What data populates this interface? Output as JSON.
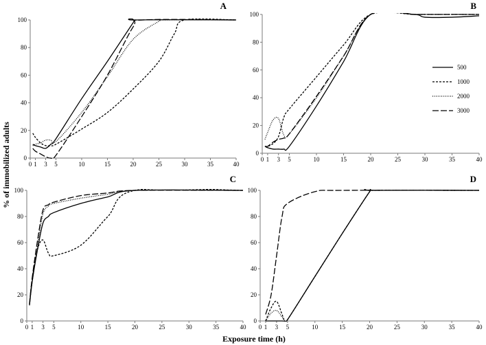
{
  "chart_data": {
    "type": "line",
    "ylabel": "% of immobilized adults",
    "xlabel": "Exposure time (h)",
    "x_ticks": [
      0,
      1,
      3,
      5,
      10,
      15,
      20,
      25,
      30,
      35,
      40
    ],
    "y_ticks": [
      0,
      20,
      40,
      60,
      80,
      100
    ],
    "xlim": [
      0,
      40
    ],
    "ylim": [
      0,
      100
    ],
    "legend": {
      "placement": "panel B, right",
      "entries": [
        {
          "label": "500",
          "style": "solid"
        },
        {
          "label": "1000",
          "style": "short-dash"
        },
        {
          "label": "2000",
          "style": "dotted"
        },
        {
          "label": "3000",
          "style": "long-dash"
        }
      ]
    },
    "panels": [
      {
        "label": "A",
        "series": [
          {
            "name": "500",
            "style": "solid",
            "points": [
              [
                0.5,
                10
              ],
              [
                1,
                9
              ],
              [
                2,
                8
              ],
              [
                3,
                7
              ],
              [
                4,
                10
              ],
              [
                5,
                14
              ],
              [
                10,
                43
              ],
              [
                15,
                70
              ],
              [
                20,
                98
              ],
              [
                20.5,
                100
              ],
              [
                40,
                100
              ]
            ]
          },
          {
            "name": "1000",
            "style": "short-dash",
            "points": [
              [
                0.5,
                18
              ],
              [
                1,
                15
              ],
              [
                2,
                11
              ],
              [
                3,
                9
              ],
              [
                4,
                9
              ],
              [
                5,
                10
              ],
              [
                10,
                21
              ],
              [
                15,
                33
              ],
              [
                20,
                50
              ],
              [
                25,
                70
              ],
              [
                28,
                90
              ],
              [
                30,
                100
              ],
              [
                40,
                100
              ]
            ]
          },
          {
            "name": "2000",
            "style": "dotted",
            "points": [
              [
                0.5,
                9
              ],
              [
                1,
                10
              ],
              [
                2,
                11
              ],
              [
                3,
                13
              ],
              [
                4,
                13
              ],
              [
                5,
                12
              ],
              [
                10,
                33
              ],
              [
                15,
                59
              ],
              [
                20,
                86
              ],
              [
                25,
                99
              ],
              [
                26,
                100
              ],
              [
                40,
                100
              ]
            ]
          },
          {
            "name": "3000",
            "style": "long-dash",
            "points": [
              [
                0.5,
                7
              ],
              [
                1,
                5
              ],
              [
                2,
                3
              ],
              [
                3,
                1
              ],
              [
                4,
                0
              ],
              [
                5,
                2
              ],
              [
                10,
                30
              ],
              [
                15,
                60
              ],
              [
                20,
                95
              ],
              [
                22,
                100
              ],
              [
                40,
                100
              ]
            ]
          }
        ]
      },
      {
        "label": "B",
        "series": [
          {
            "name": "500",
            "style": "solid",
            "points": [
              [
                0.5,
                5
              ],
              [
                1,
                4
              ],
              [
                2,
                3
              ],
              [
                3,
                3
              ],
              [
                4,
                3
              ],
              [
                5,
                5
              ],
              [
                10,
                34
              ],
              [
                15,
                66
              ],
              [
                20,
                100
              ],
              [
                28,
                100
              ],
              [
                30,
                98
              ],
              [
                35,
                98
              ],
              [
                40,
                99
              ]
            ]
          },
          {
            "name": "1000",
            "style": "short-dash",
            "points": [
              [
                0.5,
                5
              ],
              [
                1,
                5
              ],
              [
                2,
                7
              ],
              [
                3,
                12
              ],
              [
                4,
                26
              ],
              [
                5,
                32
              ],
              [
                10,
                55
              ],
              [
                15,
                78
              ],
              [
                20,
                100
              ],
              [
                28,
                100
              ],
              [
                30,
                100
              ],
              [
                35,
                100
              ],
              [
                40,
                100
              ]
            ]
          },
          {
            "name": "2000",
            "style": "dotted",
            "points": [
              [
                0.5,
                10
              ],
              [
                1,
                15
              ],
              [
                2,
                24
              ],
              [
                3,
                25
              ],
              [
                4,
                13
              ],
              [
                5,
                14
              ],
              [
                10,
                40
              ],
              [
                15,
                70
              ],
              [
                20,
                100
              ],
              [
                28,
                100
              ],
              [
                30,
                100
              ],
              [
                40,
                100
              ]
            ]
          },
          {
            "name": "3000",
            "style": "long-dash",
            "points": [
              [
                0.5,
                5
              ],
              [
                1,
                5
              ],
              [
                2,
                8
              ],
              [
                3,
                10
              ],
              [
                4,
                11
              ],
              [
                5,
                14
              ],
              [
                10,
                41
              ],
              [
                15,
                70
              ],
              [
                20,
                100
              ],
              [
                28,
                100
              ],
              [
                30,
                100
              ],
              [
                40,
                100
              ]
            ]
          }
        ]
      },
      {
        "label": "C",
        "series": [
          {
            "name": "500",
            "style": "solid",
            "points": [
              [
                0.5,
                12
              ],
              [
                1,
                30
              ],
              [
                2,
                55
              ],
              [
                3,
                75
              ],
              [
                4,
                80
              ],
              [
                5,
                83
              ],
              [
                10,
                90
              ],
              [
                15,
                95
              ],
              [
                20,
                100
              ],
              [
                40,
                100
              ]
            ]
          },
          {
            "name": "1000",
            "style": "short-dash",
            "points": [
              [
                0.5,
                13
              ],
              [
                1,
                32
              ],
              [
                2,
                55
              ],
              [
                3,
                62
              ],
              [
                4,
                52
              ],
              [
                5,
                50
              ],
              [
                10,
                58
              ],
              [
                15,
                80
              ],
              [
                20,
                100
              ],
              [
                40,
                100
              ]
            ]
          },
          {
            "name": "2000",
            "style": "dotted",
            "points": [
              [
                0.5,
                12
              ],
              [
                1,
                30
              ],
              [
                2,
                58
              ],
              [
                3,
                82
              ],
              [
                4,
                88
              ],
              [
                5,
                90
              ],
              [
                10,
                94
              ],
              [
                15,
                97
              ],
              [
                20,
                100
              ],
              [
                40,
                100
              ]
            ]
          },
          {
            "name": "3000",
            "style": "long-dash",
            "points": [
              [
                0.5,
                13
              ],
              [
                1,
                33
              ],
              [
                2,
                62
              ],
              [
                3,
                85
              ],
              [
                4,
                89
              ],
              [
                5,
                91
              ],
              [
                10,
                96
              ],
              [
                15,
                98
              ],
              [
                20,
                100
              ],
              [
                40,
                100
              ]
            ]
          }
        ]
      },
      {
        "label": "D",
        "series": [
          {
            "name": "500",
            "style": "solid",
            "points": [
              [
                1,
                0
              ],
              [
                2,
                0
              ],
              [
                3,
                0
              ],
              [
                4,
                0
              ],
              [
                4.5,
                0
              ],
              [
                5,
                1
              ],
              [
                10,
                34
              ],
              [
                15,
                67
              ],
              [
                20,
                99
              ],
              [
                20.5,
                100
              ],
              [
                40,
                100
              ]
            ]
          },
          {
            "name": "1000",
            "style": "short-dash",
            "points": [
              [
                1,
                0
              ],
              [
                2,
                10
              ],
              [
                3,
                15
              ],
              [
                4,
                5
              ],
              [
                4.5,
                0
              ],
              [
                5,
                1
              ],
              [
                10,
                34
              ],
              [
                15,
                67
              ],
              [
                20,
                99
              ],
              [
                20.5,
                100
              ],
              [
                40,
                100
              ]
            ]
          },
          {
            "name": "2000",
            "style": "dotted",
            "points": [
              [
                1,
                0
              ],
              [
                2,
                6
              ],
              [
                3,
                8
              ],
              [
                4,
                3
              ],
              [
                4.5,
                0
              ],
              [
                5,
                1
              ],
              [
                10,
                34
              ],
              [
                15,
                67
              ],
              [
                20,
                99
              ],
              [
                20.5,
                100
              ],
              [
                40,
                100
              ]
            ]
          },
          {
            "name": "3000",
            "style": "long-dash",
            "points": [
              [
                1,
                5
              ],
              [
                2,
                20
              ],
              [
                3,
                50
              ],
              [
                4,
                80
              ],
              [
                5,
                90
              ],
              [
                10,
                99
              ],
              [
                15,
                100
              ],
              [
                40,
                100
              ]
            ]
          }
        ]
      }
    ]
  }
}
